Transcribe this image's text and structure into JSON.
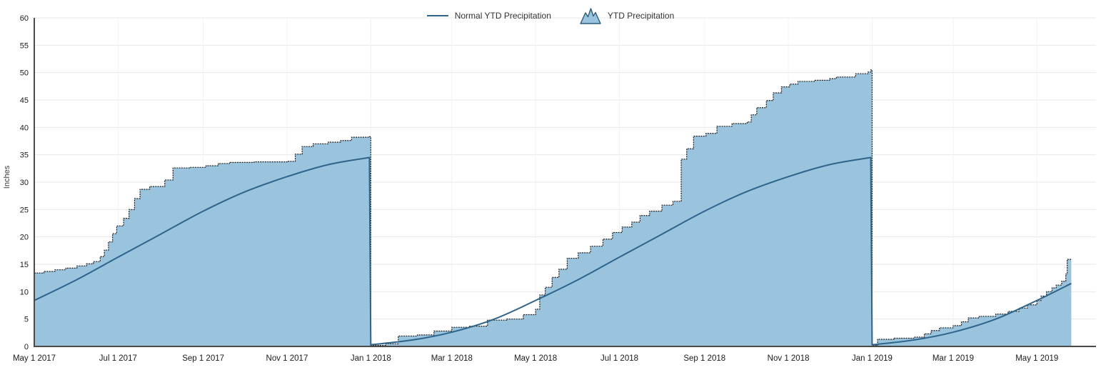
{
  "colors": {
    "background": "#ffffff",
    "area_fill": "#9ac4de",
    "area_edge": "#1f1f1f",
    "area_icon_edge": "#2c5a7a",
    "normal_line": "#2e648a",
    "grid_h": "#e8e8e8",
    "grid_v": "#f2f2f2",
    "axis": "#4a4a4a",
    "tick_text": "#1b1b1b",
    "legend_text": "#333333",
    "ylabel_text": "#3d3d3d"
  },
  "chart_data": {
    "type": "area",
    "title": "",
    "xlabel": "",
    "ylabel": "Inches",
    "ylim": [
      0,
      60
    ],
    "y_tick_step": 5,
    "y_ticks": [
      0,
      5,
      10,
      15,
      20,
      25,
      30,
      35,
      40,
      45,
      50,
      55,
      60
    ],
    "grid": true,
    "legend_position": "top-center",
    "x_domain": [
      "2017-05-01",
      "2019-06-13"
    ],
    "x_ticks": [
      {
        "date": "2017-05-01",
        "label": "May 1 2017"
      },
      {
        "date": "2017-07-01",
        "label": "Jul 1 2017"
      },
      {
        "date": "2017-09-01",
        "label": "Sep 1 2017"
      },
      {
        "date": "2017-11-01",
        "label": "Nov 1 2017"
      },
      {
        "date": "2018-01-01",
        "label": "Jan 1 2018"
      },
      {
        "date": "2018-03-01",
        "label": "Mar 1 2018"
      },
      {
        "date": "2018-05-01",
        "label": "May 1 2018"
      },
      {
        "date": "2018-07-01",
        "label": "Jul 1 2018"
      },
      {
        "date": "2018-09-01",
        "label": "Sep 1 2018"
      },
      {
        "date": "2018-11-01",
        "label": "Nov 1 2018"
      },
      {
        "date": "2019-01-01",
        "label": "Jan 1 2019"
      },
      {
        "date": "2019-03-01",
        "label": "Mar 1 2019"
      },
      {
        "date": "2019-05-01",
        "label": "May 1 2019"
      }
    ],
    "legend": [
      {
        "label": "Normal YTD Precipitation",
        "swatch": "line"
      },
      {
        "label": "YTD Precipitation",
        "swatch": "area"
      }
    ],
    "series": [
      {
        "name": "Normal YTD Precipitation",
        "type": "line-smooth",
        "points": [
          [
            "2017-05-01",
            8.4
          ],
          [
            "2017-06-01",
            12.2
          ],
          [
            "2017-07-01",
            16.3
          ],
          [
            "2017-08-01",
            20.5
          ],
          [
            "2017-09-01",
            24.7
          ],
          [
            "2017-10-01",
            28.2
          ],
          [
            "2017-11-01",
            31.0
          ],
          [
            "2017-12-01",
            33.2
          ],
          [
            "2017-12-31",
            34.5
          ],
          [
            "2018-01-01",
            0.3
          ],
          [
            "2018-02-01",
            1.2
          ],
          [
            "2018-03-01",
            2.6
          ],
          [
            "2018-04-01",
            5.0
          ],
          [
            "2018-05-01",
            8.4
          ],
          [
            "2018-06-01",
            12.2
          ],
          [
            "2018-07-01",
            16.3
          ],
          [
            "2018-08-01",
            20.5
          ],
          [
            "2018-09-01",
            24.7
          ],
          [
            "2018-10-01",
            28.2
          ],
          [
            "2018-11-01",
            31.0
          ],
          [
            "2018-12-01",
            33.2
          ],
          [
            "2018-12-31",
            34.5
          ],
          [
            "2019-01-01",
            0.3
          ],
          [
            "2019-02-01",
            1.2
          ],
          [
            "2019-03-01",
            2.6
          ],
          [
            "2019-04-01",
            5.0
          ],
          [
            "2019-05-01",
            8.4
          ],
          [
            "2019-05-26",
            11.5
          ]
        ]
      },
      {
        "name": "YTD Precipitation",
        "type": "step-area",
        "points": [
          [
            "2017-05-01",
            13.4
          ],
          [
            "2017-05-08",
            13.7
          ],
          [
            "2017-05-16",
            14.0
          ],
          [
            "2017-05-24",
            14.3
          ],
          [
            "2017-06-01",
            14.7
          ],
          [
            "2017-06-08",
            15.1
          ],
          [
            "2017-06-13",
            15.5
          ],
          [
            "2017-06-18",
            16.4
          ],
          [
            "2017-06-21",
            17.6
          ],
          [
            "2017-06-24",
            19.1
          ],
          [
            "2017-06-27",
            20.6
          ],
          [
            "2017-06-30",
            22.0
          ],
          [
            "2017-07-05",
            23.4
          ],
          [
            "2017-07-09",
            25.0
          ],
          [
            "2017-07-13",
            27.0
          ],
          [
            "2017-07-17",
            28.7
          ],
          [
            "2017-07-24",
            29.2
          ],
          [
            "2017-08-04",
            30.4
          ],
          [
            "2017-08-10",
            32.6
          ],
          [
            "2017-08-22",
            32.7
          ],
          [
            "2017-09-03",
            33.0
          ],
          [
            "2017-09-12",
            33.4
          ],
          [
            "2017-09-20",
            33.6
          ],
          [
            "2017-10-08",
            33.7
          ],
          [
            "2017-11-01",
            33.8
          ],
          [
            "2017-11-07",
            35.1
          ],
          [
            "2017-11-12",
            36.5
          ],
          [
            "2017-11-20",
            37.0
          ],
          [
            "2017-12-01",
            37.3
          ],
          [
            "2017-12-10",
            37.6
          ],
          [
            "2017-12-18",
            38.2
          ],
          [
            "2017-12-31",
            38.3
          ],
          [
            "2018-01-01",
            0.2
          ],
          [
            "2018-01-12",
            0.5
          ],
          [
            "2018-01-21",
            1.9
          ],
          [
            "2018-02-04",
            2.1
          ],
          [
            "2018-02-16",
            2.8
          ],
          [
            "2018-03-01",
            3.5
          ],
          [
            "2018-03-14",
            3.7
          ],
          [
            "2018-03-27",
            4.8
          ],
          [
            "2018-04-10",
            5.0
          ],
          [
            "2018-04-22",
            5.8
          ],
          [
            "2018-05-01",
            6.8
          ],
          [
            "2018-05-04",
            9.4
          ],
          [
            "2018-05-08",
            10.8
          ],
          [
            "2018-05-13",
            12.6
          ],
          [
            "2018-05-18",
            14.1
          ],
          [
            "2018-05-24",
            16.1
          ],
          [
            "2018-06-01",
            17.1
          ],
          [
            "2018-06-10",
            18.3
          ],
          [
            "2018-06-19",
            19.6
          ],
          [
            "2018-06-26",
            20.8
          ],
          [
            "2018-07-03",
            21.8
          ],
          [
            "2018-07-10",
            22.7
          ],
          [
            "2018-07-16",
            23.9
          ],
          [
            "2018-07-23",
            24.7
          ],
          [
            "2018-08-01",
            25.8
          ],
          [
            "2018-08-09",
            26.5
          ],
          [
            "2018-08-15",
            34.2
          ],
          [
            "2018-08-19",
            36.1
          ],
          [
            "2018-08-24",
            38.4
          ],
          [
            "2018-09-02",
            38.9
          ],
          [
            "2018-09-10",
            40.2
          ],
          [
            "2018-09-21",
            40.7
          ],
          [
            "2018-10-02",
            41.0
          ],
          [
            "2018-10-05",
            42.3
          ],
          [
            "2018-10-09",
            43.6
          ],
          [
            "2018-10-16",
            44.9
          ],
          [
            "2018-10-21",
            46.3
          ],
          [
            "2018-10-27",
            47.4
          ],
          [
            "2018-11-02",
            47.9
          ],
          [
            "2018-11-08",
            48.4
          ],
          [
            "2018-11-20",
            48.6
          ],
          [
            "2018-12-01",
            48.9
          ],
          [
            "2018-12-06",
            49.2
          ],
          [
            "2018-12-20",
            49.8
          ],
          [
            "2018-12-29",
            50.1
          ],
          [
            "2018-12-31",
            50.5
          ],
          [
            "2019-01-01",
            0.2
          ],
          [
            "2019-01-05",
            1.3
          ],
          [
            "2019-01-17",
            1.5
          ],
          [
            "2019-02-01",
            1.7
          ],
          [
            "2019-02-08",
            2.3
          ],
          [
            "2019-02-13",
            2.9
          ],
          [
            "2019-02-19",
            3.4
          ],
          [
            "2019-03-01",
            3.8
          ],
          [
            "2019-03-07",
            4.5
          ],
          [
            "2019-03-12",
            5.2
          ],
          [
            "2019-03-20",
            5.5
          ],
          [
            "2019-04-01",
            5.9
          ],
          [
            "2019-04-10",
            6.4
          ],
          [
            "2019-04-18",
            7.0
          ],
          [
            "2019-04-24",
            7.6
          ],
          [
            "2019-05-01",
            8.4
          ],
          [
            "2019-05-04",
            9.2
          ],
          [
            "2019-05-08",
            10.0
          ],
          [
            "2019-05-12",
            10.7
          ],
          [
            "2019-05-15",
            11.2
          ],
          [
            "2019-05-19",
            11.9
          ],
          [
            "2019-05-22",
            13.2
          ],
          [
            "2019-05-23",
            15.9
          ],
          [
            "2019-05-26",
            16.0
          ]
        ]
      }
    ]
  }
}
